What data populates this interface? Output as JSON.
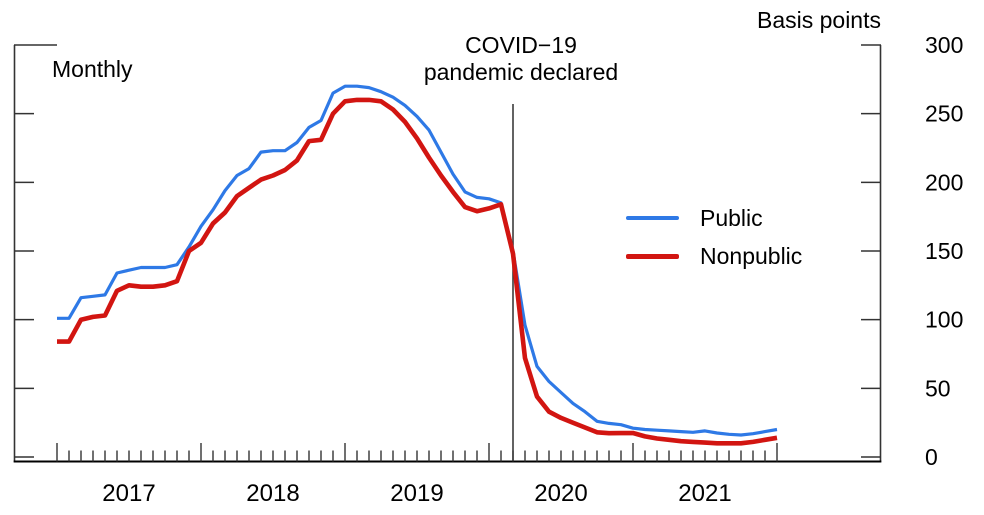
{
  "labels": {
    "frequency": "Monthly",
    "unit": "Basis points"
  },
  "annotation": {
    "line1": "COVID−19",
    "line2": "pandemic declared",
    "x": "2020-03"
  },
  "legend": [
    {
      "label": "Public",
      "color": "#2e79e6"
    },
    {
      "label": "Nonpublic",
      "color": "#d21511"
    }
  ],
  "chart_data": {
    "type": "line",
    "title": "",
    "xlabel": "",
    "ylabel": "Basis points",
    "ylim": [
      0,
      300
    ],
    "y_ticks": [
      0,
      50,
      100,
      150,
      200,
      250,
      300
    ],
    "y_axis_labels_side": "right",
    "grid": false,
    "legend_position": "center-right",
    "x_start": "2017-01",
    "x_end": "2022-01",
    "x_interval": "month",
    "x_tick_years": [
      "2017",
      "2018",
      "2019",
      "2020",
      "2021"
    ],
    "annotation_x": "2020-03",
    "series": [
      {
        "name": "Public",
        "color": "#2e79e6",
        "stroke_width": 3.2,
        "values": [
          101,
          101,
          116,
          117,
          118,
          134,
          136,
          138,
          138,
          138,
          140,
          153,
          168,
          180,
          194,
          205,
          210,
          222,
          223,
          223,
          229,
          240,
          245,
          265,
          270,
          270,
          269,
          266,
          262,
          256,
          248,
          238,
          222,
          206,
          193,
          189,
          188,
          185,
          150,
          96,
          66,
          55,
          47,
          39,
          33,
          26,
          24.5,
          23.5,
          21,
          20,
          19.5,
          19,
          18.5,
          18,
          19,
          17.5,
          16.5,
          16,
          17,
          18.5,
          20
        ]
      },
      {
        "name": "Nonpublic",
        "color": "#d21511",
        "stroke_width": 4.6,
        "values": [
          84,
          84,
          100,
          102,
          103,
          121,
          125,
          124,
          124,
          125,
          128,
          150,
          156,
          170,
          178,
          190,
          196,
          202,
          205,
          209,
          216,
          230,
          231,
          250,
          259,
          260,
          260,
          259,
          253,
          244,
          232,
          218,
          205,
          193,
          182,
          179,
          181,
          184,
          148,
          72,
          44,
          33,
          28.5,
          25,
          21.5,
          18,
          17.3,
          17.4,
          17.5,
          15,
          13.5,
          12.5,
          11.5,
          11,
          10.5,
          10,
          10,
          10,
          11,
          12.5,
          14
        ]
      }
    ]
  }
}
